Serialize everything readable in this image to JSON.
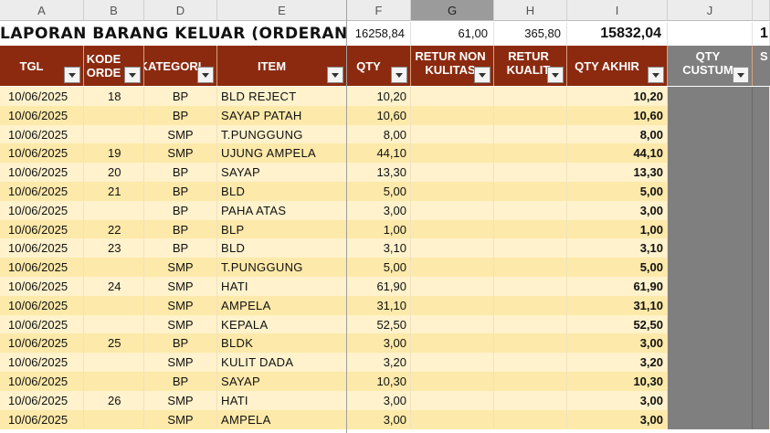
{
  "column_headers": [
    "A",
    "B",
    "D",
    "E",
    "F",
    "G",
    "H",
    "I",
    "J"
  ],
  "title_row": {
    "title": "LAPORAN BARANG KELUAR (ORDERAN C",
    "f_total": "16258,84",
    "g_total": "61,00",
    "h_total": "365,80",
    "i_total": "15832,04",
    "k_partial": "1"
  },
  "headers": {
    "tgl": "TGL",
    "kode_order": "KODE\nORDE",
    "kategori": "KATEGORI",
    "item": "ITEM",
    "qty": "QTY",
    "retur_non_kualitas": "RETUR NON\nKULITAS",
    "retur_kualitas": "RETUR\nKUALIT",
    "qty_akhir": "QTY AKHIR",
    "qty_custumer": "QTY\nCUSTUM",
    "k_partial": "S"
  },
  "rows": [
    {
      "tgl": "10/06/2025",
      "kode": "18",
      "kategori": "BP",
      "item": "BLD REJECT",
      "qty": "10,20",
      "qty_akhir": "10,20"
    },
    {
      "tgl": "10/06/2025",
      "kode": "",
      "kategori": "BP",
      "item": "SAYAP PATAH",
      "qty": "10,60",
      "qty_akhir": "10,60"
    },
    {
      "tgl": "10/06/2025",
      "kode": "",
      "kategori": "SMP",
      "item": "T.PUNGGUNG",
      "qty": "8,00",
      "qty_akhir": "8,00"
    },
    {
      "tgl": "10/06/2025",
      "kode": "19",
      "kategori": "SMP",
      "item": "UJUNG AMPELA",
      "qty": "44,10",
      "qty_akhir": "44,10"
    },
    {
      "tgl": "10/06/2025",
      "kode": "20",
      "kategori": "BP",
      "item": "SAYAP",
      "qty": "13,30",
      "qty_akhir": "13,30"
    },
    {
      "tgl": "10/06/2025",
      "kode": "21",
      "kategori": "BP",
      "item": "BLD",
      "qty": "5,00",
      "qty_akhir": "5,00"
    },
    {
      "tgl": "10/06/2025",
      "kode": "",
      "kategori": "BP",
      "item": "PAHA ATAS",
      "qty": "3,00",
      "qty_akhir": "3,00"
    },
    {
      "tgl": "10/06/2025",
      "kode": "22",
      "kategori": "BP",
      "item": "BLP",
      "qty": "1,00",
      "qty_akhir": "1,00"
    },
    {
      "tgl": "10/06/2025",
      "kode": "23",
      "kategori": "BP",
      "item": "BLD",
      "qty": "3,10",
      "qty_akhir": "3,10"
    },
    {
      "tgl": "10/06/2025",
      "kode": "",
      "kategori": "SMP",
      "item": "T.PUNGGUNG",
      "qty": "5,00",
      "qty_akhir": "5,00"
    },
    {
      "tgl": "10/06/2025",
      "kode": "24",
      "kategori": "SMP",
      "item": "HATI",
      "qty": "61,90",
      "qty_akhir": "61,90"
    },
    {
      "tgl": "10/06/2025",
      "kode": "",
      "kategori": "SMP",
      "item": "AMPELA",
      "qty": "31,10",
      "qty_akhir": "31,10"
    },
    {
      "tgl": "10/06/2025",
      "kode": "",
      "kategori": "SMP",
      "item": "KEPALA",
      "qty": "52,50",
      "qty_akhir": "52,50"
    },
    {
      "tgl": "10/06/2025",
      "kode": "25",
      "kategori": "BP",
      "item": "BLDK",
      "qty": "3,00",
      "qty_akhir": "3,00"
    },
    {
      "tgl": "10/06/2025",
      "kode": "",
      "kategori": "SMP",
      "item": "KULIT DADA",
      "qty": "3,20",
      "qty_akhir": "3,20"
    },
    {
      "tgl": "10/06/2025",
      "kode": "",
      "kategori": "BP",
      "item": "SAYAP",
      "qty": "10,30",
      "qty_akhir": "10,30"
    },
    {
      "tgl": "10/06/2025",
      "kode": "26",
      "kategori": "SMP",
      "item": "HATI",
      "qty": "3,00",
      "qty_akhir": "3,00"
    },
    {
      "tgl": "10/06/2025",
      "kode": "",
      "kategori": "SMP",
      "item": "AMPELA",
      "qty": "3,00",
      "qty_akhir": "3,00"
    }
  ],
  "colors": {
    "header_bg": "#8b2a0f",
    "band_a": "#fff2cc",
    "band_b": "#fde9a9",
    "customer_col": "#7f7f7f",
    "selected_column": "#9b9b9b"
  }
}
